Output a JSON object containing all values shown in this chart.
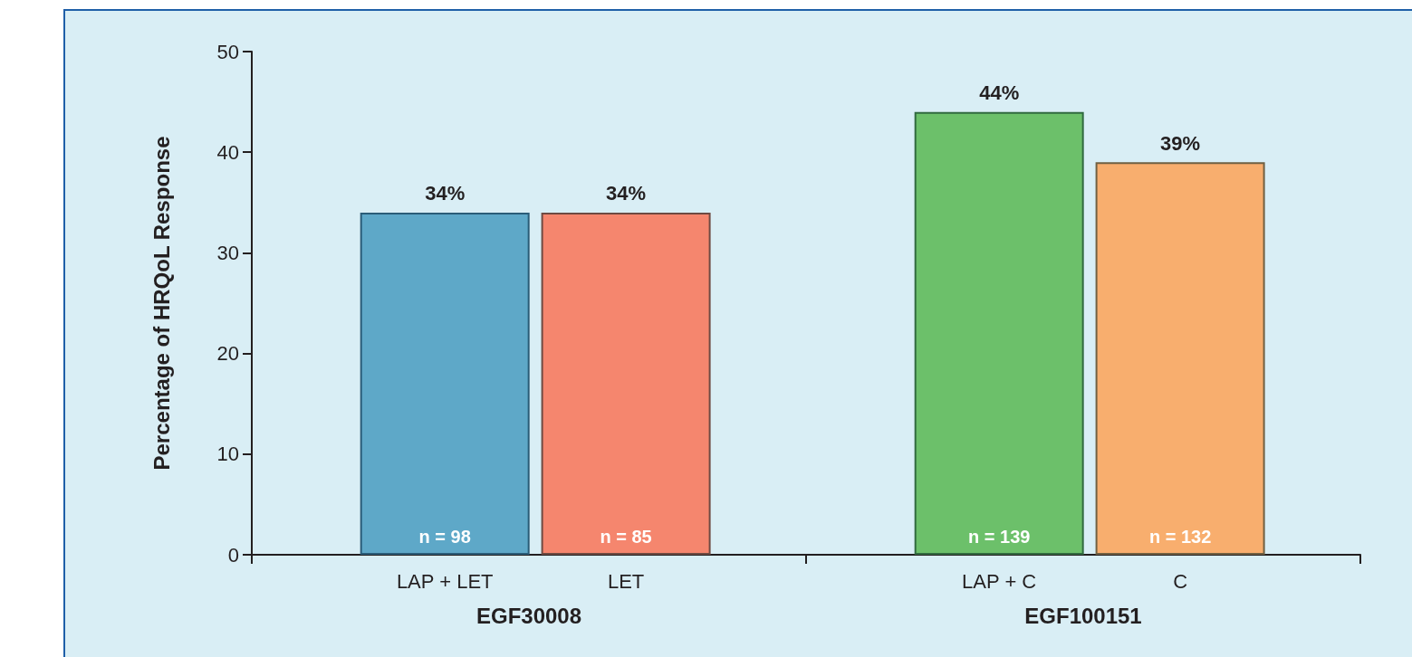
{
  "chart_data": {
    "type": "bar",
    "ylabel": "Percentage of HRQoL Response",
    "categories": [
      "LAP + LET",
      "LET",
      "LAP + C",
      "C"
    ],
    "values": [
      34,
      34,
      44,
      39
    ],
    "colors": [
      "#5ea8c8",
      "#f5866e",
      "#6cc06a",
      "#f8ae6e"
    ],
    "value_labels": [
      "34%",
      "34%",
      "44%",
      "39%"
    ],
    "ylim": [
      0,
      50
    ],
    "yticks": [
      0,
      10,
      20,
      30,
      40,
      50
    ],
    "grid": false,
    "annotations": [
      {
        "text": "n = 98",
        "x": "LAP + LET",
        "y": 0
      },
      {
        "text": "n = 85",
        "x": "LET",
        "y": 0
      },
      {
        "text": "n = 139",
        "x": "LAP + C",
        "y": 0
      },
      {
        "text": "n = 132",
        "x": "C",
        "y": 0
      },
      "EGF30008",
      "EGF100151"
    ]
  }
}
